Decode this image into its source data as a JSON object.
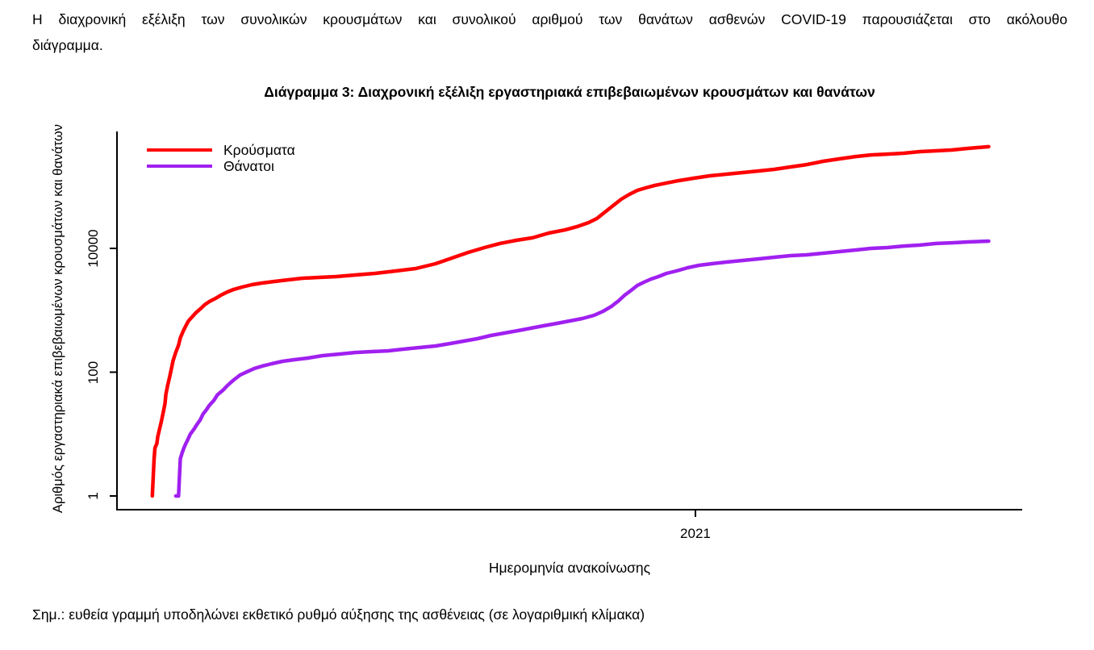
{
  "intro": {
    "line1": "Η διαχρονική εξέλιξη των συνολικών κρουσμάτων και συνολικού αριθμού των θανάτων ασθενών COVID-19 παρουσιάζεται στο ακόλουθο",
    "line2": "διάγραμμα."
  },
  "note": "Σημ.: ευθεία γραμμή υποδηλώνει εκθετικό ρυθμό αύξησης της ασθένειας (σε λογαριθμική κλίμακα)",
  "chart_data": {
    "type": "line",
    "title": "Διάγραμμα 3: Διαχρονική εξέλιξη εργαστηριακά επιβεβαιωμένων κρουσμάτων και θανάτων",
    "xlabel": "Ημερομηνία ανακοίνωσης",
    "ylabel": "Αριθμός εργαστηριακά επιβεβαιωμένων κρουσμάτων και θανάτων",
    "y_scale": "log",
    "grid": false,
    "legend_position": "top-left",
    "axis_color": "#000000",
    "y_ticks": [
      1,
      100,
      10000
    ],
    "y_tick_labels": [
      "1",
      "100",
      "10000"
    ],
    "ylim": [
      0.6,
      775000
    ],
    "x_ticks": [
      {
        "label": "2021",
        "x_frac": 0.639
      }
    ],
    "series": [
      {
        "name": "Κρούσματα",
        "color": "#FF0000",
        "points": [
          [
            0.039,
            1
          ],
          [
            0.04,
            2
          ],
          [
            0.041,
            4
          ],
          [
            0.042,
            6
          ],
          [
            0.044,
            7
          ],
          [
            0.045,
            9
          ],
          [
            0.047,
            12
          ],
          [
            0.049,
            16
          ],
          [
            0.051,
            22
          ],
          [
            0.053,
            31
          ],
          [
            0.054,
            44
          ],
          [
            0.056,
            61
          ],
          [
            0.058,
            82
          ],
          [
            0.06,
            111
          ],
          [
            0.062,
            155
          ],
          [
            0.065,
            210
          ],
          [
            0.068,
            273
          ],
          [
            0.07,
            358
          ],
          [
            0.073,
            455
          ],
          [
            0.076,
            560
          ],
          [
            0.079,
            672
          ],
          [
            0.083,
            780
          ],
          [
            0.087,
            908
          ],
          [
            0.092,
            1050
          ],
          [
            0.097,
            1230
          ],
          [
            0.102,
            1380
          ],
          [
            0.109,
            1560
          ],
          [
            0.115,
            1760
          ],
          [
            0.122,
            1980
          ],
          [
            0.129,
            2170
          ],
          [
            0.138,
            2370
          ],
          [
            0.149,
            2590
          ],
          [
            0.16,
            2750
          ],
          [
            0.174,
            2920
          ],
          [
            0.189,
            3100
          ],
          [
            0.205,
            3300
          ],
          [
            0.223,
            3400
          ],
          [
            0.242,
            3500
          ],
          [
            0.263,
            3720
          ],
          [
            0.285,
            3940
          ],
          [
            0.308,
            4320
          ],
          [
            0.33,
            4720
          ],
          [
            0.352,
            5650
          ],
          [
            0.37,
            6970
          ],
          [
            0.388,
            8600
          ],
          [
            0.406,
            10300
          ],
          [
            0.423,
            12000
          ],
          [
            0.441,
            13500
          ],
          [
            0.459,
            14800
          ],
          [
            0.477,
            17700
          ],
          [
            0.495,
            19900
          ],
          [
            0.508,
            22400
          ],
          [
            0.521,
            26100
          ],
          [
            0.53,
            30300
          ],
          [
            0.539,
            38600
          ],
          [
            0.548,
            49100
          ],
          [
            0.557,
            62400
          ],
          [
            0.566,
            74600
          ],
          [
            0.575,
            86700
          ],
          [
            0.584,
            94800
          ],
          [
            0.594,
            104000
          ],
          [
            0.606,
            113000
          ],
          [
            0.62,
            124000
          ],
          [
            0.637,
            136000
          ],
          [
            0.655,
            149000
          ],
          [
            0.673,
            158000
          ],
          [
            0.691,
            168000
          ],
          [
            0.709,
            178000
          ],
          [
            0.726,
            189000
          ],
          [
            0.744,
            207000
          ],
          [
            0.762,
            226000
          ],
          [
            0.78,
            255000
          ],
          [
            0.798,
            279000
          ],
          [
            0.816,
            305000
          ],
          [
            0.833,
            324000
          ],
          [
            0.851,
            334000
          ],
          [
            0.869,
            345000
          ],
          [
            0.887,
            366000
          ],
          [
            0.905,
            377000
          ],
          [
            0.922,
            389000
          ],
          [
            0.94,
            413000
          ],
          [
            0.963,
            439000
          ]
        ]
      },
      {
        "name": "Θάνατοι",
        "color": "#A020F0",
        "points": [
          [
            0.065,
            1
          ],
          [
            0.068,
            1
          ],
          [
            0.069,
            2
          ],
          [
            0.07,
            4
          ],
          [
            0.072,
            5
          ],
          [
            0.074,
            6
          ],
          [
            0.076,
            7
          ],
          [
            0.078,
            8
          ],
          [
            0.081,
            10
          ],
          [
            0.085,
            12
          ],
          [
            0.088,
            14
          ],
          [
            0.092,
            17
          ],
          [
            0.095,
            21
          ],
          [
            0.099,
            25
          ],
          [
            0.102,
            29
          ],
          [
            0.107,
            35
          ],
          [
            0.111,
            43
          ],
          [
            0.117,
            51
          ],
          [
            0.122,
            61
          ],
          [
            0.129,
            75
          ],
          [
            0.136,
            90
          ],
          [
            0.144,
            102
          ],
          [
            0.152,
            115
          ],
          [
            0.16,
            125
          ],
          [
            0.171,
            137
          ],
          [
            0.183,
            150
          ],
          [
            0.196,
            159
          ],
          [
            0.211,
            169
          ],
          [
            0.227,
            185
          ],
          [
            0.245,
            196
          ],
          [
            0.263,
            208
          ],
          [
            0.281,
            215
          ],
          [
            0.299,
            221
          ],
          [
            0.316,
            235
          ],
          [
            0.334,
            250
          ],
          [
            0.352,
            265
          ],
          [
            0.368,
            290
          ],
          [
            0.383,
            317
          ],
          [
            0.398,
            347
          ],
          [
            0.413,
            392
          ],
          [
            0.428,
            429
          ],
          [
            0.443,
            469
          ],
          [
            0.457,
            513
          ],
          [
            0.471,
            561
          ],
          [
            0.486,
            614
          ],
          [
            0.5,
            671
          ],
          [
            0.514,
            735
          ],
          [
            0.527,
            830
          ],
          [
            0.537,
            964
          ],
          [
            0.546,
            1150
          ],
          [
            0.554,
            1420
          ],
          [
            0.561,
            1760
          ],
          [
            0.568,
            2100
          ],
          [
            0.575,
            2520
          ],
          [
            0.582,
            2840
          ],
          [
            0.59,
            3200
          ],
          [
            0.598,
            3500
          ],
          [
            0.607,
            3940
          ],
          [
            0.618,
            4320
          ],
          [
            0.63,
            4860
          ],
          [
            0.643,
            5320
          ],
          [
            0.657,
            5650
          ],
          [
            0.673,
            6010
          ],
          [
            0.691,
            6380
          ],
          [
            0.709,
            6780
          ],
          [
            0.726,
            7190
          ],
          [
            0.744,
            7640
          ],
          [
            0.762,
            7870
          ],
          [
            0.78,
            8360
          ],
          [
            0.798,
            8870
          ],
          [
            0.816,
            9420
          ],
          [
            0.833,
            10000
          ],
          [
            0.851,
            10300
          ],
          [
            0.869,
            10900
          ],
          [
            0.887,
            11300
          ],
          [
            0.905,
            12000
          ],
          [
            0.922,
            12300
          ],
          [
            0.94,
            12700
          ],
          [
            0.963,
            13100
          ]
        ]
      }
    ]
  }
}
